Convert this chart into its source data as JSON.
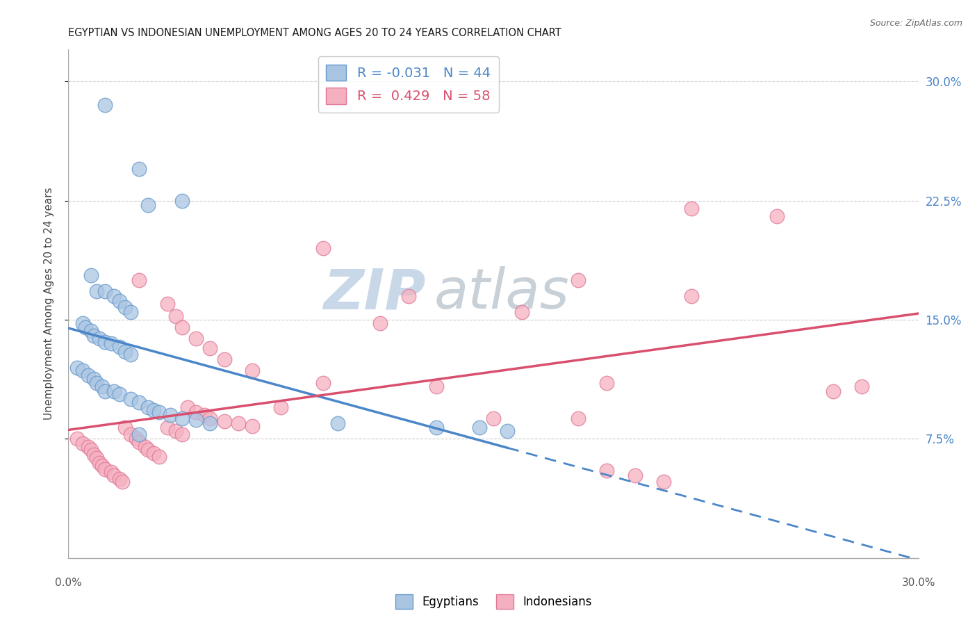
{
  "title": "EGYPTIAN VS INDONESIAN UNEMPLOYMENT AMONG AGES 20 TO 24 YEARS CORRELATION CHART",
  "source": "Source: ZipAtlas.com",
  "ylabel": "Unemployment Among Ages 20 to 24 years",
  "xlim": [
    0.0,
    0.3
  ],
  "ylim": [
    0.0,
    0.32
  ],
  "yticks": [
    0.075,
    0.15,
    0.225,
    0.3
  ],
  "ytick_labels": [
    "7.5%",
    "15.0%",
    "22.5%",
    "30.0%"
  ],
  "egypt_color": "#aac5e2",
  "egypt_edge_color": "#6699cc",
  "indonesia_color": "#f5b0c0",
  "indonesia_edge_color": "#e07898",
  "egypt_line_color": "#4a86c8",
  "indonesia_line_color": "#d94f6e",
  "egypt_x": [
    0.013,
    0.025,
    0.04,
    0.028,
    0.008,
    0.01,
    0.013,
    0.016,
    0.018,
    0.02,
    0.022,
    0.005,
    0.006,
    0.008,
    0.009,
    0.011,
    0.013,
    0.015,
    0.018,
    0.02,
    0.022,
    0.003,
    0.005,
    0.007,
    0.009,
    0.01,
    0.012,
    0.013,
    0.016,
    0.018,
    0.022,
    0.025,
    0.028,
    0.03,
    0.032,
    0.036,
    0.04,
    0.045,
    0.05,
    0.095,
    0.13,
    0.145,
    0.155,
    0.025
  ],
  "egypt_y": [
    0.285,
    0.245,
    0.225,
    0.222,
    0.178,
    0.168,
    0.168,
    0.165,
    0.162,
    0.158,
    0.155,
    0.148,
    0.145,
    0.143,
    0.14,
    0.138,
    0.136,
    0.135,
    0.133,
    0.13,
    0.128,
    0.12,
    0.118,
    0.115,
    0.113,
    0.11,
    0.108,
    0.105,
    0.105,
    0.103,
    0.1,
    0.098,
    0.095,
    0.093,
    0.092,
    0.09,
    0.088,
    0.087,
    0.085,
    0.085,
    0.082,
    0.082,
    0.08,
    0.078
  ],
  "indonesia_x": [
    0.003,
    0.005,
    0.007,
    0.008,
    0.009,
    0.01,
    0.011,
    0.012,
    0.013,
    0.015,
    0.016,
    0.018,
    0.019,
    0.02,
    0.022,
    0.024,
    0.025,
    0.027,
    0.028,
    0.03,
    0.032,
    0.035,
    0.038,
    0.04,
    0.042,
    0.045,
    0.048,
    0.05,
    0.055,
    0.06,
    0.065,
    0.075,
    0.09,
    0.11,
    0.12,
    0.16,
    0.18,
    0.22,
    0.025,
    0.035,
    0.038,
    0.04,
    0.045,
    0.05,
    0.055,
    0.065,
    0.09,
    0.13,
    0.15,
    0.19,
    0.25,
    0.22,
    0.27,
    0.28,
    0.18,
    0.19,
    0.2,
    0.21
  ],
  "indonesia_y": [
    0.075,
    0.072,
    0.07,
    0.068,
    0.065,
    0.063,
    0.06,
    0.058,
    0.056,
    0.054,
    0.052,
    0.05,
    0.048,
    0.082,
    0.078,
    0.075,
    0.073,
    0.07,
    0.068,
    0.066,
    0.064,
    0.082,
    0.08,
    0.078,
    0.095,
    0.092,
    0.09,
    0.088,
    0.086,
    0.085,
    0.083,
    0.095,
    0.11,
    0.148,
    0.165,
    0.155,
    0.175,
    0.165,
    0.175,
    0.16,
    0.152,
    0.145,
    0.138,
    0.132,
    0.125,
    0.118,
    0.195,
    0.108,
    0.088,
    0.11,
    0.215,
    0.22,
    0.105,
    0.108,
    0.088,
    0.055,
    0.052,
    0.048
  ],
  "background_color": "#ffffff",
  "grid_color": "#cccccc",
  "watermark_zip": "ZIP",
  "watermark_atlas": "atlas",
  "watermark_color_zip": "#c8d8e8",
  "watermark_color_atlas": "#c8d0d8"
}
